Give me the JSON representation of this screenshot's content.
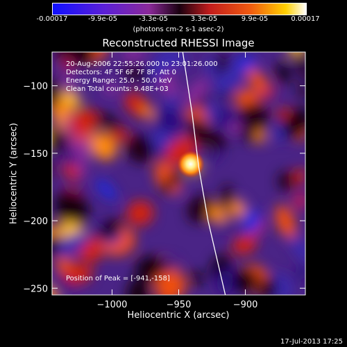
{
  "colorbar": {
    "tick_labels": [
      "-0.00017",
      "-9.9e-05",
      "-3.3e-05",
      "3.3e-05",
      "9.9e-05",
      "0.00017"
    ],
    "unit_label": "(photons cm-2 s-1 asec-2)",
    "range": [
      -0.00017,
      0.00017
    ]
  },
  "chart_data": {
    "type": "heatmap",
    "title": "Reconstructed RHESSI Image",
    "xlabel": "Heliocentric X (arcsec)",
    "ylabel": "Heliocentric Y (arcsec)",
    "xlim": [
      -1045,
      -855
    ],
    "ylim": [
      -255,
      -75
    ],
    "x_ticks": [
      -1000,
      -950,
      -900
    ],
    "y_ticks": [
      -250,
      -200,
      -150,
      -100
    ],
    "annotations": [
      "20-Aug-2006 22:55:26.000 to 23:01:26.000",
      "Detectors: 4F 5F 6F 7F 8F, Att 0",
      "Energy Range: 25.0 - 50.0 keV",
      "Clean    Total counts: 9.48E+03"
    ],
    "peak_label": "Position of Peak = [-941,-158]",
    "peak": [
      -941,
      -158
    ],
    "limb_line": [
      [
        -947,
        -75
      ],
      [
        -940,
        -120
      ],
      [
        -935,
        -160
      ],
      [
        -928,
        -200
      ],
      [
        -915,
        -255
      ]
    ]
  },
  "footer": {
    "timestamp": "17-Jul-2013 17:25"
  }
}
